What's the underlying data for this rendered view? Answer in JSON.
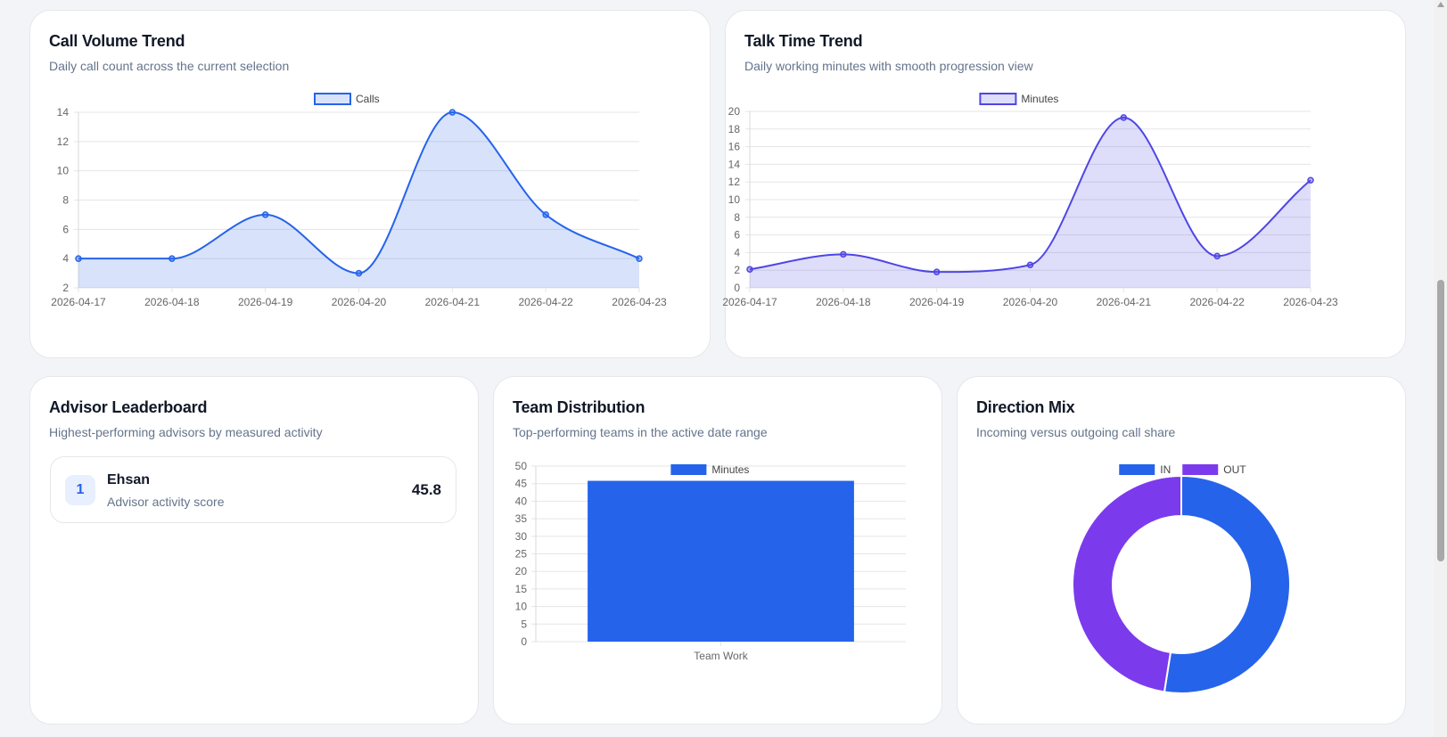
{
  "colors": {
    "blue": "#2563eb",
    "purple": "#7c3aed",
    "indigo": "#4f46e5"
  },
  "call_volume": {
    "title": "Call Volume Trend",
    "subtitle": "Daily call count across the current selection",
    "chart_data": {
      "type": "line",
      "area": true,
      "categories": [
        "2026-04-17",
        "2026-04-18",
        "2026-04-19",
        "2026-04-20",
        "2026-04-21",
        "2026-04-22",
        "2026-04-23"
      ],
      "series": [
        {
          "name": "Calls",
          "values": [
            4,
            4,
            7,
            3,
            14,
            7,
            4
          ]
        }
      ],
      "ylim": [
        2,
        14
      ],
      "yticks": [
        2,
        4,
        6,
        8,
        10,
        12,
        14
      ],
      "grid": true,
      "legend": "top-center",
      "color": "#2563eb"
    }
  },
  "talk_time": {
    "title": "Talk Time Trend",
    "subtitle": "Daily working minutes with smooth progression view",
    "chart_data": {
      "type": "line",
      "area": true,
      "categories": [
        "2026-04-17",
        "2026-04-18",
        "2026-04-19",
        "2026-04-20",
        "2026-04-21",
        "2026-04-22",
        "2026-04-23"
      ],
      "series": [
        {
          "name": "Minutes",
          "values": [
            2.1,
            3.8,
            1.8,
            2.6,
            19.3,
            3.6,
            12.2
          ]
        }
      ],
      "ylim": [
        0,
        20
      ],
      "yticks": [
        0,
        2,
        4,
        6,
        8,
        10,
        12,
        14,
        16,
        18,
        20
      ],
      "grid": true,
      "legend": "top-center",
      "color": "#4f46e5"
    }
  },
  "leaderboard": {
    "title": "Advisor Leaderboard",
    "subtitle": "Highest-performing advisors by measured activity",
    "items": [
      {
        "rank": "1",
        "name": "Ehsan",
        "desc": "Advisor activity score",
        "score": "45.8"
      }
    ]
  },
  "team_distribution": {
    "title": "Team Distribution",
    "subtitle": "Top-performing teams in the active date range",
    "chart_data": {
      "type": "bar",
      "categories": [
        "Team Work"
      ],
      "series": [
        {
          "name": "Minutes",
          "values": [
            45.8
          ]
        }
      ],
      "ylim": [
        0,
        50
      ],
      "yticks": [
        0,
        5,
        10,
        15,
        20,
        25,
        30,
        35,
        40,
        45,
        50
      ],
      "grid": true,
      "legend": "top-center",
      "color": "#2563eb"
    }
  },
  "direction_mix": {
    "title": "Direction Mix",
    "subtitle": "Incoming versus outgoing call share",
    "chart_data": {
      "type": "pie",
      "donut": true,
      "labels": [
        "IN",
        "OUT"
      ],
      "values": [
        52.5,
        47.5
      ],
      "colors": [
        "#2563eb",
        "#7c3aed"
      ],
      "legend": "top-center"
    }
  }
}
